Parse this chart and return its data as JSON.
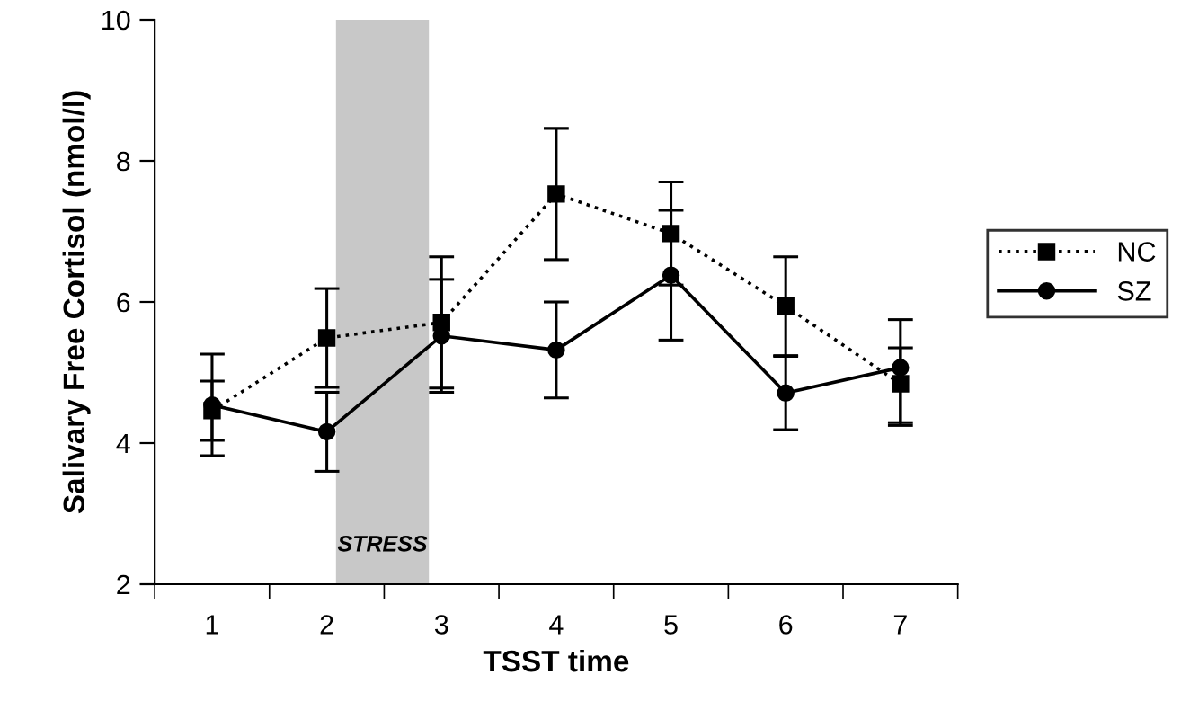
{
  "chart_data": {
    "type": "line",
    "xlabel": "TSST time",
    "ylabel": "Salivary Free Cortisol (nmol/l)",
    "x": [
      1,
      2,
      3,
      4,
      5,
      6,
      7
    ],
    "xlim": [
      0.5,
      7.5
    ],
    "xticks": [
      {
        "value": 0.5,
        "label": null
      },
      {
        "value": 1,
        "label": "1"
      },
      {
        "value": 1.5,
        "label": null
      },
      {
        "value": 2,
        "label": "2"
      },
      {
        "value": 2.5,
        "label": null
      },
      {
        "value": 3,
        "label": "3"
      },
      {
        "value": 3.5,
        "label": null
      },
      {
        "value": 4,
        "label": "4"
      },
      {
        "value": 4.5,
        "label": null
      },
      {
        "value": 5,
        "label": "5"
      },
      {
        "value": 5.5,
        "label": null
      },
      {
        "value": 6,
        "label": "6"
      },
      {
        "value": 6.5,
        "label": null
      },
      {
        "value": 7,
        "label": "7"
      },
      {
        "value": 7.5,
        "label": null
      }
    ],
    "ylim": [
      2,
      10
    ],
    "yticks": [
      2,
      4,
      6,
      8,
      10
    ],
    "grid": false,
    "legend": "right",
    "bands": [
      {
        "axis": "x",
        "from": 2.08,
        "to": 2.89,
        "label": "STRESS",
        "color": "#c8c8c8"
      }
    ],
    "series": [
      {
        "name": "NC",
        "color": "#000000",
        "marker": "square",
        "line_style": "dotted",
        "values": [
          4.46,
          5.49,
          5.71,
          7.53,
          6.97,
          5.94,
          4.84
        ],
        "errors": [
          0.42,
          0.7,
          0.93,
          0.93,
          0.73,
          0.7,
          [
            4.29,
            5.35
          ]
        ]
      },
      {
        "name": "SZ",
        "color": "#000000",
        "marker": "circle",
        "line_style": "solid",
        "values": [
          4.54,
          4.16,
          5.52,
          5.32,
          6.38,
          4.71,
          5.07
        ],
        "errors": [
          0.72,
          0.56,
          0.8,
          0.68,
          0.92,
          0.52,
          [
            4.25,
            5.75
          ]
        ]
      }
    ]
  }
}
